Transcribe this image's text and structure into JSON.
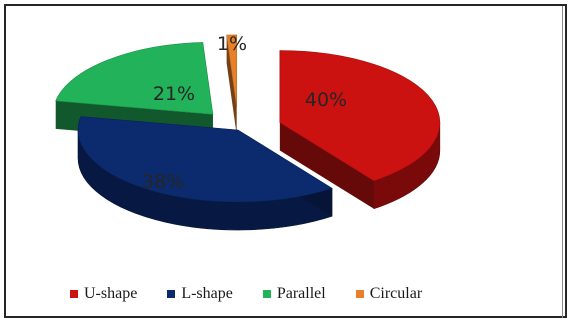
{
  "chart_data": {
    "type": "pie",
    "title": "",
    "series": [
      {
        "name": "U-shape",
        "value": 40,
        "label": "40%",
        "color": "#cc1111"
      },
      {
        "name": "L-shape",
        "value": 38,
        "label": "38%",
        "color": "#0c2a6e"
      },
      {
        "name": "Parallel",
        "value": 21,
        "label": "21%",
        "color": "#22b25a"
      },
      {
        "name": "Circular",
        "value": 1,
        "label": "1%",
        "color": "#e8802a"
      }
    ],
    "exploded": true,
    "three_d": true,
    "legend_position": "bottom"
  }
}
